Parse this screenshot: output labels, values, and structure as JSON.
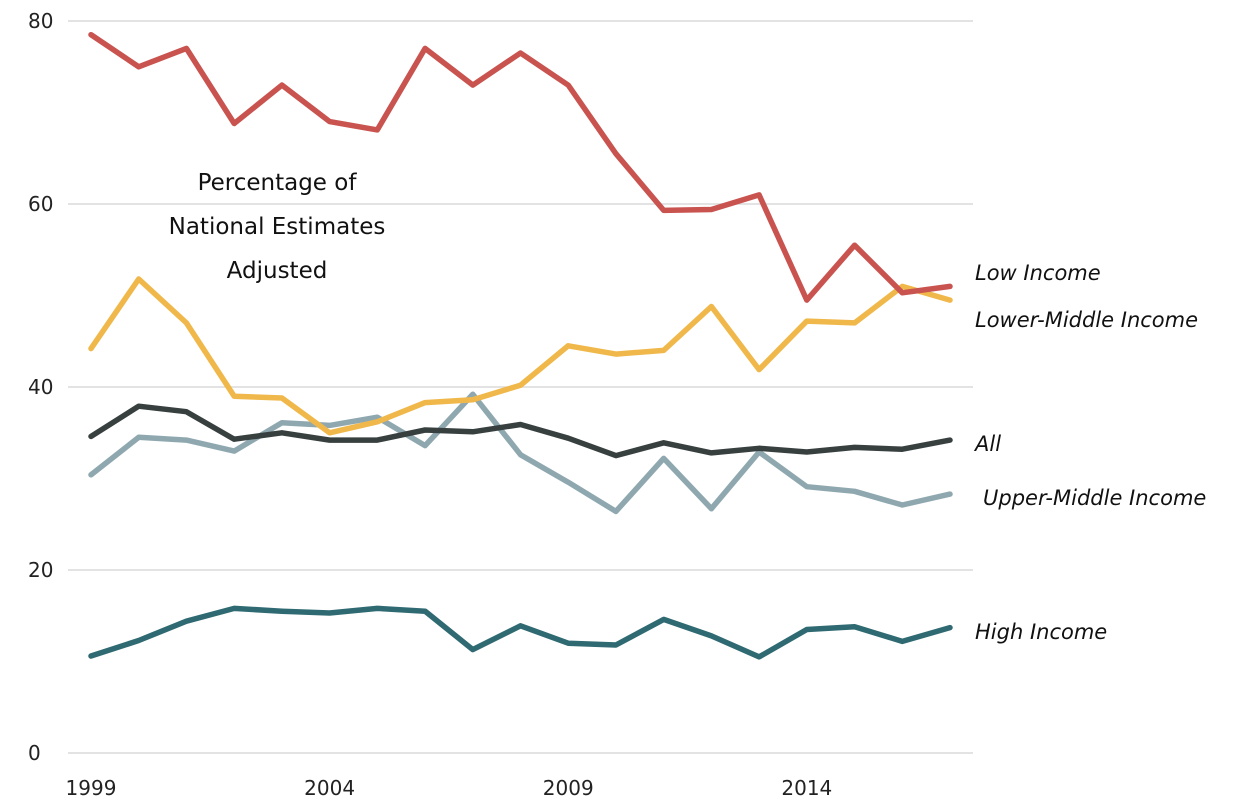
{
  "chart_data": {
    "type": "line",
    "title": "",
    "xlabel": "",
    "ylabel": "",
    "annotation": [
      "Percentage of",
      "National Estimates",
      "Adjusted"
    ],
    "xlim": [
      1999,
      2017
    ],
    "ylim": [
      0,
      80
    ],
    "yticks": [
      0,
      20,
      40,
      60,
      80
    ],
    "xticks": [
      1999,
      2004,
      2009,
      2014
    ],
    "grid": true,
    "x": [
      1999,
      2000,
      2001,
      2002,
      2003,
      2004,
      2005,
      2006,
      2007,
      2008,
      2009,
      2010,
      2011,
      2012,
      2013,
      2014,
      2015,
      2016,
      2017
    ],
    "series": [
      {
        "name": "Low Income",
        "color": "#c9534f",
        "values": [
          78.5,
          75,
          77,
          68.8,
          73,
          69,
          68.1,
          77,
          73,
          76.5,
          73,
          65.5,
          59.3,
          59.4,
          61,
          49.5,
          55.5,
          50.3,
          51
        ]
      },
      {
        "name": "Lower-Middle Income",
        "color": "#f0b84a",
        "values": [
          44.2,
          51.8,
          47,
          39,
          38.8,
          35,
          36.2,
          38.3,
          38.6,
          40.2,
          44.5,
          43.6,
          44,
          48.8,
          41.9,
          47.2,
          47,
          51,
          49.5
        ]
      },
      {
        "name": "All",
        "color": "#38403f",
        "values": [
          34.6,
          37.9,
          37.3,
          34.3,
          35,
          34.2,
          34.2,
          35.3,
          35.1,
          35.9,
          34.4,
          32.5,
          33.9,
          32.8,
          33.3,
          32.9,
          33.4,
          33.2,
          34.2
        ]
      },
      {
        "name": "Upper-Middle Income",
        "color": "#8fa8b0",
        "values": [
          30.4,
          34.5,
          34.2,
          33,
          36.1,
          35.8,
          36.7,
          33.6,
          39.2,
          32.6,
          29.6,
          26.4,
          32.2,
          26.7,
          32.9,
          29.1,
          28.6,
          27.1,
          28.3
        ]
      },
      {
        "name": "High Income",
        "color": "#2f6a72",
        "values": [
          10.6,
          12.3,
          14.4,
          15.8,
          15.5,
          15.3,
          15.8,
          15.5,
          11.3,
          13.9,
          12,
          11.8,
          14.6,
          12.8,
          10.5,
          13.5,
          13.8,
          12.2,
          13.7
        ]
      }
    ]
  }
}
